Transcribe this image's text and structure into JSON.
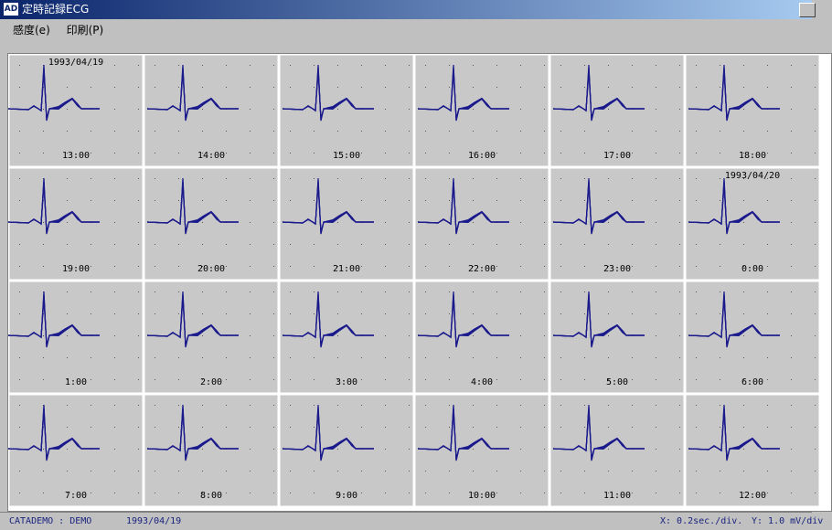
{
  "window": {
    "title": "定時記録ECG",
    "icon": "AD"
  },
  "menu": [
    "感度(e)",
    "印刷(P)"
  ],
  "cells": [
    {
      "date": "1993/04/19",
      "time": "13:00"
    },
    {
      "time": "14:00"
    },
    {
      "time": "15:00"
    },
    {
      "time": "16:00"
    },
    {
      "time": "17:00"
    },
    {
      "time": "18:00"
    },
    {
      "time": "19:00"
    },
    {
      "time": "20:00"
    },
    {
      "time": "21:00"
    },
    {
      "time": "22:00"
    },
    {
      "time": "23:00"
    },
    {
      "date": "1993/04/20",
      "time": "0:00"
    },
    {
      "time": "1:00"
    },
    {
      "time": "2:00"
    },
    {
      "time": "3:00"
    },
    {
      "time": "4:00"
    },
    {
      "time": "5:00"
    },
    {
      "time": "6:00"
    },
    {
      "time": "7:00"
    },
    {
      "time": "8:00"
    },
    {
      "time": "9:00"
    },
    {
      "time": "10:00"
    },
    {
      "time": "11:00"
    },
    {
      "time": "12:00"
    }
  ],
  "status": {
    "user": "CATADEMO : DEMO",
    "date": "1993/04/19",
    "x_scale": "X: 0.2sec./div.",
    "y_scale": "Y: 1.0 mV/div"
  }
}
